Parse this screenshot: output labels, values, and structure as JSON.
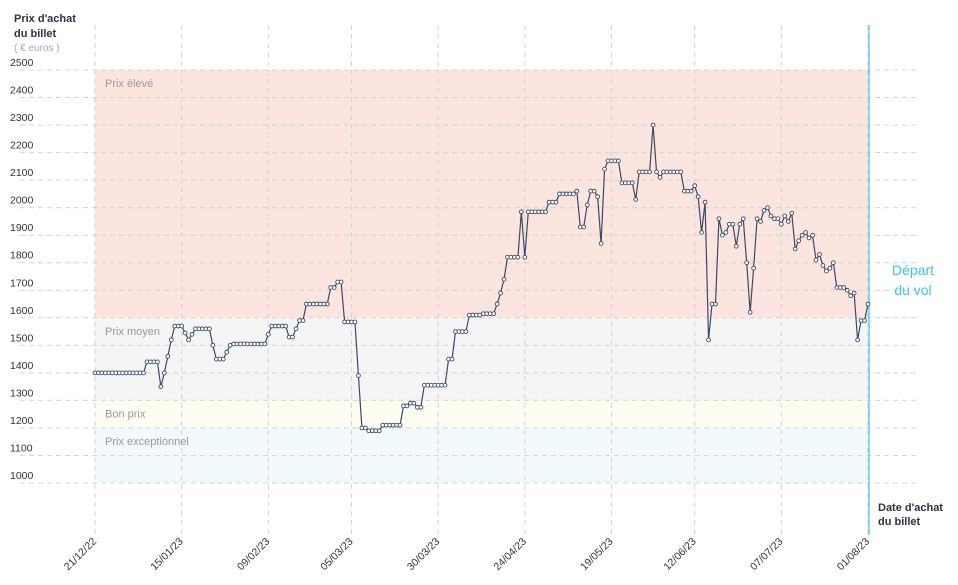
{
  "chart_data": {
    "type": "line",
    "y_label": [
      "Prix d'achat",
      "du billet"
    ],
    "y_unit": "( € euros )",
    "x_label": [
      "Date d'achat",
      "du billet"
    ],
    "annotation": [
      "Départ",
      "du vol"
    ],
    "annotation_color": "#3cc6e0",
    "zones": [
      {
        "label": "Prix élevé",
        "from": 1600,
        "to": 2500,
        "color": "#fde5df"
      },
      {
        "label": "Prix moyen",
        "from": 1300,
        "to": 1600,
        "color": "#f5f5f5"
      },
      {
        "label": "Bon prix",
        "from": 1200,
        "to": 1300,
        "color": "#fdfdf1"
      },
      {
        "label": "Prix exceptionnel",
        "from": 1000,
        "to": 1200,
        "color": "#f1f9fc"
      }
    ],
    "categories": [
      "21/12/22",
      null,
      null,
      null,
      null,
      null,
      null,
      null,
      null,
      null,
      null,
      null,
      null,
      null,
      null,
      null,
      null,
      null,
      null,
      null,
      null,
      null,
      null,
      null,
      null,
      "15/01/23",
      null,
      null,
      null,
      null,
      null,
      null,
      null,
      null,
      null,
      null,
      null,
      null,
      null,
      null,
      null,
      null,
      null,
      null,
      null,
      null,
      null,
      null,
      null,
      null,
      "09/02/23",
      null,
      null,
      null,
      null,
      null,
      null,
      null,
      null,
      null,
      null,
      null,
      null,
      null,
      null,
      null,
      null,
      null,
      null,
      null,
      null,
      null,
      null,
      null,
      "05/03/23",
      null,
      null,
      null,
      null,
      null,
      null,
      null,
      null,
      null,
      null,
      null,
      null,
      null,
      null,
      null,
      null,
      null,
      null,
      null,
      null,
      null,
      null,
      null,
      null,
      "30/03/23",
      null,
      null,
      null,
      null,
      null,
      null,
      null,
      null,
      null,
      null,
      null,
      null,
      null,
      null,
      null,
      null,
      null,
      null,
      null,
      null,
      null,
      null,
      null,
      null,
      "24/04/23",
      null,
      null,
      null,
      null,
      null,
      null,
      null,
      null,
      null,
      null,
      null,
      null,
      null,
      null,
      null,
      null,
      null,
      null,
      null,
      null,
      null,
      null,
      null,
      null,
      "19/05/23",
      null,
      null,
      null,
      null,
      null,
      null,
      null,
      null,
      null,
      null,
      null,
      null,
      null,
      null,
      null,
      null,
      null,
      null,
      null,
      null,
      null,
      null,
      null,
      "12/06/23",
      null,
      null,
      null,
      null,
      null,
      null,
      null,
      null,
      null,
      null,
      null,
      null,
      null,
      null,
      null,
      null,
      null,
      null,
      null,
      null,
      null,
      null,
      null,
      null,
      "07/07/23",
      null,
      null,
      null,
      null,
      null,
      null,
      null,
      null,
      null,
      null,
      null,
      null,
      null,
      null,
      null,
      null,
      null,
      null,
      null,
      null,
      null,
      null,
      null,
      null,
      "01/08/23"
    ],
    "series": [
      {
        "name": "Prix",
        "color": "#3a4a66",
        "values": [
          1400,
          1400,
          1400,
          1400,
          1400,
          1400,
          1400,
          1400,
          1400,
          1400,
          1400,
          1400,
          1400,
          1400,
          1400,
          1440,
          1440,
          1440,
          1440,
          1350,
          1400,
          1460,
          1520,
          1570,
          1570,
          1570,
          1545,
          1520,
          1540,
          1560,
          1560,
          1560,
          1560,
          1560,
          1500,
          1450,
          1450,
          1450,
          1475,
          1500,
          1505,
          1505,
          1505,
          1505,
          1505,
          1505,
          1505,
          1505,
          1505,
          1505,
          1540,
          1570,
          1570,
          1570,
          1570,
          1570,
          1530,
          1530,
          1560,
          1590,
          1590,
          1650,
          1650,
          1650,
          1650,
          1650,
          1650,
          1650,
          1710,
          1710,
          1730,
          1730,
          1585,
          1585,
          1585,
          1585,
          1390,
          1200,
          1200,
          1190,
          1190,
          1190,
          1190,
          1210,
          1210,
          1210,
          1210,
          1210,
          1210,
          1280,
          1280,
          1290,
          1290,
          1275,
          1275,
          1355,
          1355,
          1355,
          1355,
          1355,
          1355,
          1355,
          1450,
          1450,
          1550,
          1550,
          1550,
          1550,
          1610,
          1610,
          1610,
          1610,
          1615,
          1615,
          1615,
          1615,
          1650,
          1690,
          1740,
          1820,
          1820,
          1820,
          1820,
          1985,
          1820,
          1985,
          1985,
          1985,
          1985,
          1985,
          1985,
          2020,
          2020,
          2020,
          2050,
          2050,
          2050,
          2050,
          2050,
          2060,
          1930,
          1930,
          2010,
          2060,
          2060,
          2040,
          1870,
          2140,
          2170,
          2170,
          2170,
          2170,
          2090,
          2090,
          2090,
          2090,
          2030,
          2130,
          2130,
          2130,
          2130,
          2300,
          2130,
          2110,
          2130,
          2130,
          2130,
          2130,
          2130,
          2130,
          2060,
          2060,
          2060,
          2080,
          2040,
          1910,
          2020,
          1520,
          1650,
          1650,
          1960,
          1900,
          1910,
          1940,
          1940,
          1860,
          1940,
          1960,
          1800,
          1620,
          1780,
          1960,
          1950,
          1990,
          2000,
          1970,
          1960,
          1960,
          1940,
          1970,
          1950,
          1980,
          1850,
          1880,
          1900,
          1910,
          1890,
          1900,
          1810,
          1830,
          1790,
          1770,
          1780,
          1800,
          1710,
          1710,
          1710,
          1700,
          1680,
          1690,
          1520,
          1590,
          1590,
          1650
        ]
      }
    ],
    "ylim": [
      900,
      2500
    ],
    "yticks": [
      1000,
      1100,
      1200,
      1300,
      1400,
      1500,
      1600,
      1700,
      1800,
      1900,
      2000,
      2100,
      2200,
      2300,
      2400,
      2500
    ],
    "grid": true
  }
}
